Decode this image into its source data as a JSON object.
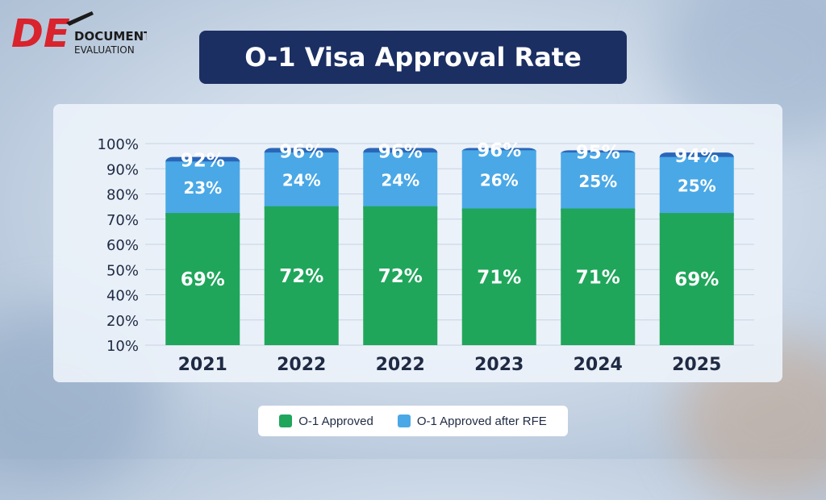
{
  "logo": {
    "letters": "DE",
    "line1": "DOCUMENT",
    "line2": "EVALUATION"
  },
  "colors": {
    "approved": "#1fa65a",
    "rfe": "#4aa8e6",
    "total": "#2a66b8",
    "text": "#ffffff",
    "axis_text": "#1f2a44",
    "logo_red": "#d9232d"
  },
  "chart_data": {
    "type": "bar",
    "title": "O-1 Visa Approval Rate",
    "categories": [
      "2021",
      "2022",
      "2022",
      "2023",
      "2024",
      "2025"
    ],
    "series": [
      {
        "name": "O-1 Approved",
        "values": [
          69,
          72,
          72,
          71,
          71,
          69
        ]
      },
      {
        "name": "O-1 Approved after RFE",
        "values": [
          23,
          24,
          24,
          26,
          25,
          25
        ]
      }
    ],
    "totals": [
      92,
      96,
      96,
      96,
      95,
      94
    ],
    "yticks": [
      "100%",
      "90%",
      "80%",
      "70%",
      "60%",
      "50%",
      "40%",
      "20%",
      "10%"
    ],
    "ylim": [
      10,
      100
    ],
    "grid": true,
    "legend_position": "bottom"
  }
}
